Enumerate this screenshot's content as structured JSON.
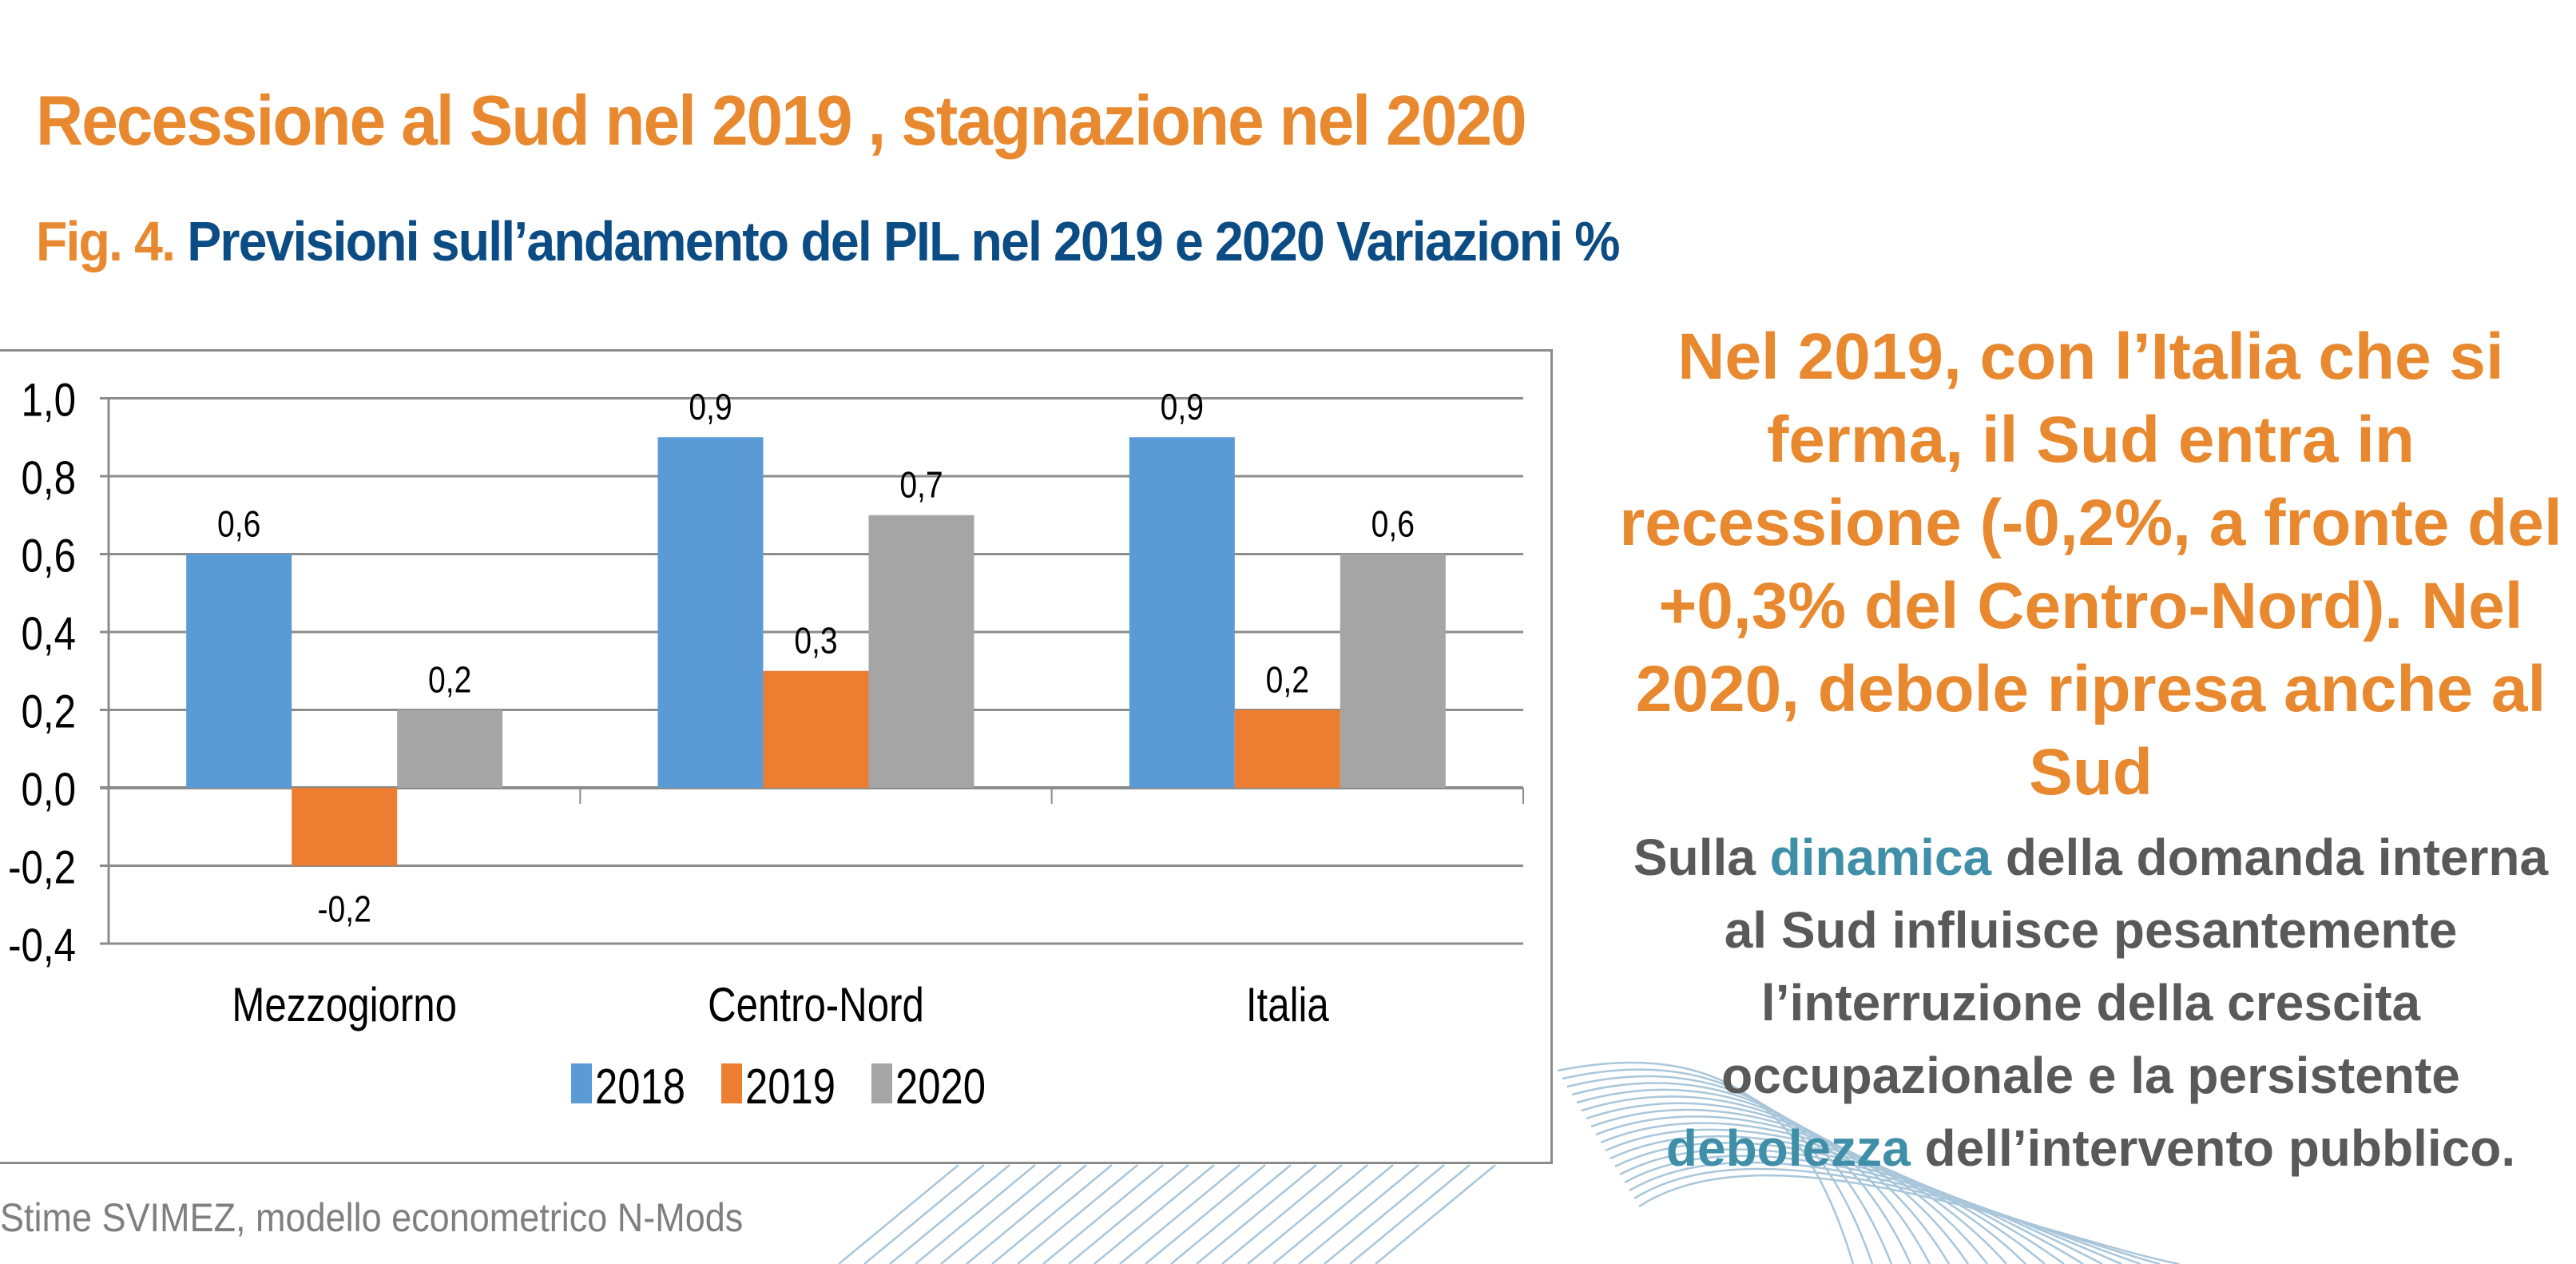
{
  "header": {
    "title": "Recessione al Sud nel 2019 , stagnazione nel 2020",
    "fig_label": "Fig. 4.",
    "fig_description": "Previsioni sull’andamento del PIL nel 2019 e 2020  Variazioni  %"
  },
  "chart_data": {
    "type": "bar",
    "title": "Previsioni sull’andamento del PIL nel 2019 e 2020  Variazioni  %",
    "xlabel": "",
    "ylabel": "",
    "categories": [
      "Mezzogiorno",
      "Centro-Nord",
      "Italia"
    ],
    "series": [
      {
        "name": "2018",
        "color": "#5B9BD5",
        "values": [
          0.6,
          0.9,
          0.9
        ],
        "labels": [
          "0,6",
          "0,9",
          "0,9"
        ]
      },
      {
        "name": "2019",
        "color": "#ED7D31",
        "values": [
          -0.2,
          0.3,
          0.2
        ],
        "labels": [
          "-0,2",
          "0,3",
          "0,2"
        ]
      },
      {
        "name": "2020",
        "color": "#A5A5A5",
        "values": [
          0.2,
          0.7,
          0.6
        ],
        "labels": [
          "0,2",
          "0,7",
          "0,6"
        ]
      }
    ],
    "ylim": [
      -0.4,
      1.0
    ],
    "yticks": [
      1.0,
      0.8,
      0.6,
      0.4,
      0.2,
      0.0,
      -0.2,
      -0.4
    ],
    "ytick_labels": [
      "1,0",
      "0,8",
      "0,6",
      "0,4",
      "0,2",
      "0,0",
      "-0,2",
      "-0,4"
    ],
    "grid": true,
    "legend_position": "bottom"
  },
  "source": "Stime SVIMEZ, modello econometrico N-Mods",
  "side_panel": {
    "headline": "Nel 2019, con l’Italia che si ferma, il Sud entra in recessione (-0,2%, a fronte del +0,3% del Centro-Nord). Nel 2020, debole ripresa anche al Sud",
    "body_part1": "Sulla ",
    "body_hl1": "dinamica",
    "body_part2": " della domanda interna al Sud influisce pesantemente l’interruzione della crescita occupazionale e la persistente ",
    "body_hl2": "debolezza",
    "body_part3": " dell’intervento pubblico."
  },
  "colors": {
    "accent_orange": "#E8892F",
    "navy": "#0B4C84",
    "highlight_teal": "#3F8FA8",
    "body_gray": "#595959"
  }
}
